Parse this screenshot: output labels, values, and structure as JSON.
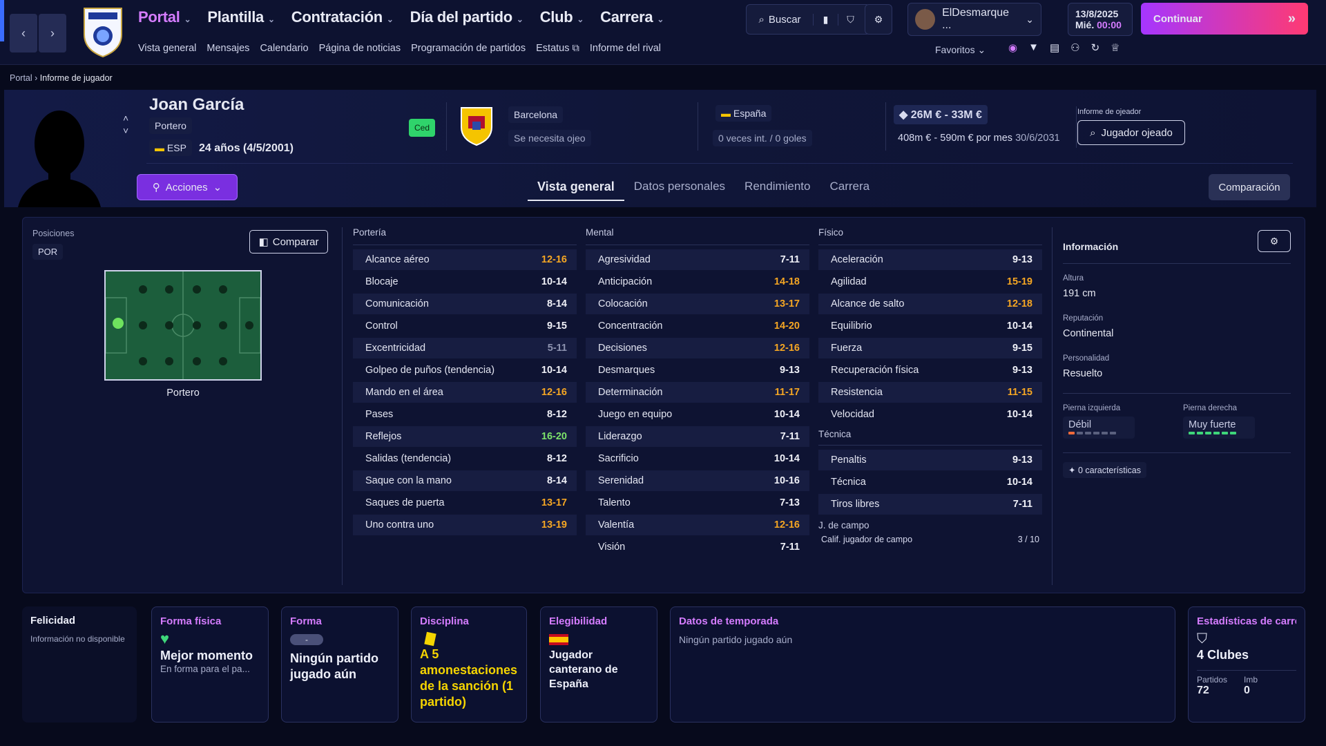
{
  "nav": {
    "main": [
      "Portal",
      "Plantilla",
      "Contratación",
      "Día del partido",
      "Club",
      "Carrera"
    ],
    "sub": [
      "Vista general",
      "Mensajes",
      "Calendario",
      "Página de noticias",
      "Programación de partidos",
      "Estatus",
      "Informe del rival"
    ],
    "search": "Buscar",
    "user": "ElDesmarque ...",
    "date": "13/8/2025",
    "day": "Mié.",
    "time": "00:00",
    "continue": "Continuar",
    "favorites": "Favoritos"
  },
  "breadcrumb": {
    "root": "Portal",
    "current": "Informe de jugador"
  },
  "player": {
    "name": "Joan García",
    "position": "Portero",
    "nation_code": "ESP",
    "age": "24 años (4/5/2001)",
    "loan_badge": "Ced",
    "club": "Barcelona",
    "scout_needed": "Se necesita ojeo",
    "country": "España",
    "caps": "0 veces int. / 0 goles",
    "value": "26M € - 33M €",
    "wage": "408m € - 590m € por mes",
    "contract_end": "30/6/2031",
    "scout_report_label": "Informe de ojeador",
    "scouted_button": "Jugador ojeado",
    "actions": "Acciones",
    "compare_right": "Comparación"
  },
  "tabs": [
    "Vista general",
    "Datos personales",
    "Rendimiento",
    "Carrera"
  ],
  "positions": {
    "label": "Posiciones",
    "code": "POR",
    "compare": "Comparar",
    "role": "Portero"
  },
  "attributes": {
    "porteria": {
      "title": "Portería",
      "rows": [
        [
          "Alcance aéreo",
          "12-16",
          "orange"
        ],
        [
          "Blocaje",
          "10-14",
          "white"
        ],
        [
          "Comunicación",
          "8-14",
          "white"
        ],
        [
          "Control",
          "9-15",
          "white"
        ],
        [
          "Excentricidad",
          "5-11",
          "gray"
        ],
        [
          "Golpeo de puños (tendencia)",
          "10-14",
          "white"
        ],
        [
          "Mando en el área",
          "12-16",
          "orange"
        ],
        [
          "Pases",
          "8-12",
          "white"
        ],
        [
          "Reflejos",
          "16-20",
          "green"
        ],
        [
          "Salidas (tendencia)",
          "8-12",
          "white"
        ],
        [
          "Saque con la mano",
          "8-14",
          "white"
        ],
        [
          "Saques de puerta",
          "13-17",
          "orange"
        ],
        [
          "Uno contra uno",
          "13-19",
          "orange"
        ]
      ]
    },
    "mental": {
      "title": "Mental",
      "rows": [
        [
          "Agresividad",
          "7-11",
          "white"
        ],
        [
          "Anticipación",
          "14-18",
          "orange"
        ],
        [
          "Colocación",
          "13-17",
          "orange"
        ],
        [
          "Concentración",
          "14-20",
          "orange"
        ],
        [
          "Decisiones",
          "12-16",
          "orange"
        ],
        [
          "Desmarques",
          "9-13",
          "white"
        ],
        [
          "Determinación",
          "11-17",
          "orange"
        ],
        [
          "Juego en equipo",
          "10-14",
          "white"
        ],
        [
          "Liderazgo",
          "7-11",
          "white"
        ],
        [
          "Sacrificio",
          "10-14",
          "white"
        ],
        [
          "Serenidad",
          "10-16",
          "white"
        ],
        [
          "Talento",
          "7-13",
          "white"
        ],
        [
          "Valentía",
          "12-16",
          "orange"
        ],
        [
          "Visión",
          "7-11",
          "white"
        ]
      ]
    },
    "fisico": {
      "title": "Físico",
      "rows": [
        [
          "Aceleración",
          "9-13",
          "white"
        ],
        [
          "Agilidad",
          "15-19",
          "orange"
        ],
        [
          "Alcance de salto",
          "12-18",
          "orange"
        ],
        [
          "Equilibrio",
          "10-14",
          "white"
        ],
        [
          "Fuerza",
          "9-15",
          "white"
        ],
        [
          "Recuperación física",
          "9-13",
          "white"
        ],
        [
          "Resistencia",
          "11-15",
          "orange"
        ],
        [
          "Velocidad",
          "10-14",
          "white"
        ]
      ]
    },
    "tecnica": {
      "title": "Técnica",
      "rows": [
        [
          "Penaltis",
          "9-13",
          "white"
        ],
        [
          "Técnica",
          "10-14",
          "white"
        ],
        [
          "Tiros libres",
          "7-11",
          "white"
        ]
      ]
    },
    "campo": {
      "title": "J. de campo",
      "label": "Calif. jugador de campo",
      "value": "3 / 10"
    }
  },
  "info": {
    "title": "Información",
    "height_label": "Altura",
    "height": "191 cm",
    "rep_label": "Reputación",
    "rep": "Continental",
    "pers_label": "Personalidad",
    "pers": "Resuelto",
    "left_label": "Pierna izquierda",
    "left": "Débil",
    "left_level": 0.2,
    "right_label": "Pierna derecha",
    "right": "Muy fuerte",
    "right_level": 1.0,
    "traits": "0 características"
  },
  "bottom": {
    "felicidad": {
      "t": "Felicidad",
      "s": "Información no disponible"
    },
    "forma_fisica": {
      "t": "Forma física",
      "b": "Mejor momento",
      "s": "En forma para el pa..."
    },
    "forma": {
      "t": "Forma",
      "pill": "-",
      "b": "Ningún partido jugado aún"
    },
    "disciplina": {
      "t": "Disciplina",
      "b": "A 5 amonestaciones de la sanción (1 partido)"
    },
    "elegibilidad": {
      "t": "Elegibilidad",
      "b": "Jugador canterano de España"
    },
    "temporada": {
      "t": "Datos de temporada",
      "s": "Ningún partido jugado aún"
    },
    "carrera": {
      "t": "Estadísticas de carrer",
      "b": "4 Clubes",
      "pl": "Partidos",
      "pv": "72",
      "il": "Imb",
      "iv": "0"
    }
  },
  "colors": {
    "accent": "#d57cff",
    "orange": "#f5a623",
    "green": "#7ce36a"
  }
}
